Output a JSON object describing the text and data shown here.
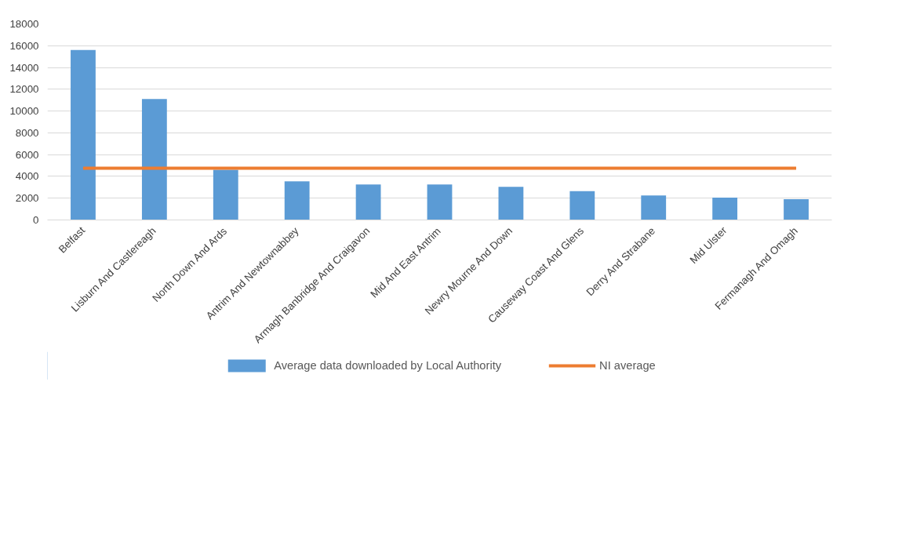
{
  "chart_data": {
    "type": "bar",
    "categories": [
      "Belfast",
      "Lisburn And Castlereagh",
      "North Down And Ards",
      "Antrim And Newtownabbey",
      "Armagh Banbridge And Craigavon",
      "Mid And East Antrim",
      "Newry Mourne And Down",
      "Causeway Coast And Glens",
      "Derry And Strabane",
      "Mid Ulster",
      "Fermanagh And Omagh"
    ],
    "series": [
      {
        "name": "Average data downloaded by Local Authority",
        "color": "#5b9bd5",
        "values": [
          15600,
          11100,
          4600,
          3550,
          3250,
          3250,
          3050,
          2650,
          2250,
          2050,
          1900
        ]
      },
      {
        "name": "NI average",
        "color": "#ed7d31",
        "type": "line",
        "values": [
          4750,
          4750,
          4750,
          4750,
          4750,
          4750,
          4750,
          4750,
          4750,
          4750,
          4750
        ]
      }
    ],
    "ylim": [
      0,
      18000
    ],
    "yticks": [
      0,
      2000,
      4000,
      6000,
      8000,
      10000,
      12000,
      14000,
      16000,
      18000
    ],
    "grid": "y",
    "legend": "bottom"
  }
}
